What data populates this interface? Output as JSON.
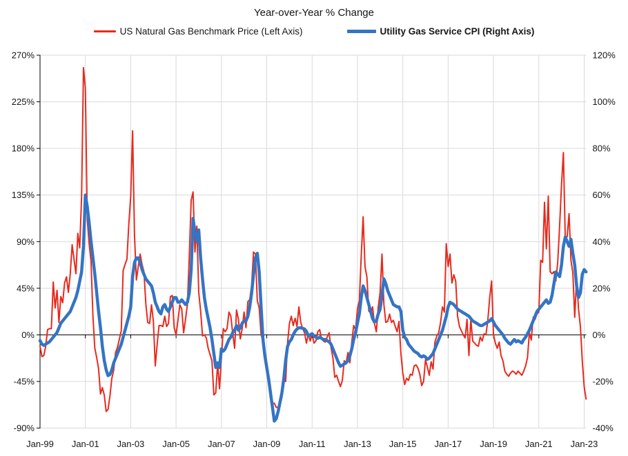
{
  "title": "Year-over-Year % Change",
  "legend": {
    "items": [
      {
        "label": "US Natural Gas Benchmark Price (Left Axis)",
        "color": "#e8291d",
        "style": "thin-line",
        "bold": false
      },
      {
        "label": "Utility Gas Service CPI (Right Axis)",
        "color": "#3474c4",
        "style": "thick-line",
        "bold": true
      }
    ]
  },
  "colors": {
    "background": "#ffffff",
    "gridline": "#d9d9d9",
    "axis": "#000000",
    "text": "#161616",
    "gas_price_line": "#e8291d",
    "cpi_line": "#3474c4"
  },
  "chart_data": {
    "type": "line",
    "title": "Year-over-Year % Change",
    "x_start": "Jan-1999",
    "x_interval": "monthly",
    "x_tick_labels": [
      "Jan-99",
      "Jan-01",
      "Jan-03",
      "Jan-05",
      "Jan-07",
      "Jan-09",
      "Jan-11",
      "Jan-13",
      "Jan-15",
      "Jan-17",
      "Jan-19",
      "Jan-21",
      "Jan-23"
    ],
    "x_tick_spacing_months": 24,
    "grid": true,
    "legend_position": "top",
    "left_axis": {
      "min": -90,
      "max": 270,
      "tick_step": 45,
      "ticks": [
        "270%",
        "225%",
        "180%",
        "135%",
        "90%",
        "45%",
        "0%",
        "-45%",
        "-90%"
      ]
    },
    "right_axis": {
      "min": -40,
      "max": 120,
      "tick_step": 20,
      "ticks": [
        "120%",
        "100%",
        "80%",
        "60%",
        "40%",
        "20%",
        "0%",
        "-20%",
        "-40%"
      ]
    },
    "series": [
      {
        "name": "US Natural Gas Benchmark Price (Left Axis)",
        "axis": "left",
        "color": "#e8291d",
        "stroke_width": 2,
        "values": [
          -11,
          -21,
          -20,
          -11,
          5,
          6,
          6,
          51,
          26,
          43,
          12,
          37,
          31,
          50,
          56,
          41,
          59,
          87,
          73,
          59,
          98,
          84,
          133,
          258,
          238,
          111,
          88,
          71,
          18,
          -13,
          -22,
          -33,
          -57,
          -51,
          -58,
          -74,
          -72,
          -59,
          -42,
          -34,
          -17,
          -12,
          -4,
          4,
          62,
          68,
          73,
          107,
          134,
          197,
          96,
          53,
          66,
          78,
          68,
          61,
          30,
          12,
          11,
          29,
          13,
          -30,
          -9,
          9,
          9,
          8,
          18,
          8,
          11,
          37,
          38,
          7,
          0,
          14,
          29,
          25,
          2,
          15,
          29,
          76,
          130,
          138,
          80,
          105,
          41,
          23,
          -1,
          0,
          -3,
          -13,
          -19,
          -25,
          -58,
          -56,
          -28,
          -52,
          -22,
          6,
          3,
          6,
          22,
          18,
          1,
          -13,
          24,
          15,
          -4,
          6,
          22,
          7,
          32,
          34,
          48,
          80,
          78,
          33,
          26,
          0,
          -6,
          -18,
          -34,
          -47,
          -58,
          -66,
          -66,
          -70,
          -70,
          -62,
          -61,
          -41,
          -45,
          -8,
          11,
          18,
          9,
          16,
          8,
          27,
          12,
          6,
          2,
          -8,
          1,
          -6,
          2,
          -8,
          -6,
          3,
          5,
          -4,
          -6,
          -7,
          -2,
          2,
          -12,
          -22,
          -41,
          -39,
          -45,
          -50,
          -44,
          -25,
          -27,
          -17,
          -27,
          -7,
          9,
          5,
          25,
          33,
          76,
          114,
          66,
          56,
          23,
          21,
          27,
          11,
          3,
          27,
          41,
          78,
          29,
          12,
          13,
          20,
          12,
          14,
          8,
          3,
          13,
          -18,
          -37,
          -48,
          -42,
          -44,
          -38,
          -39,
          -30,
          -29,
          -32,
          -38,
          -49,
          -45,
          -24,
          -31,
          -39,
          -26,
          -33,
          -7,
          -1,
          2,
          12,
          27,
          22,
          88,
          66,
          78,
          50,
          58,
          52,
          18,
          8,
          4,
          0,
          -3,
          15,
          -20,
          15,
          -6,
          -8,
          -10,
          -11,
          -2,
          -6,
          1,
          0,
          14,
          36,
          52,
          0,
          -8,
          -13,
          -7,
          -20,
          -25,
          -35,
          -38,
          -40,
          -37,
          -35,
          -36,
          -38,
          -35,
          -37,
          -39,
          -35,
          -30,
          -22,
          2,
          -5,
          17,
          15,
          20,
          22,
          72,
          70,
          128,
          83,
          134,
          61,
          59,
          61,
          52,
          70,
          105,
          145,
          176,
          92,
          95,
          117,
          72,
          60,
          17,
          55,
          25,
          8,
          -25,
          -50,
          -62
        ]
      },
      {
        "name": "Utility Gas Service CPI (Right Axis)",
        "axis": "right",
        "color": "#3474c4",
        "stroke_width": 4.5,
        "values": [
          -2.5,
          -4,
          -4.5,
          -4,
          -3.5,
          -3,
          -2,
          -1,
          0,
          1,
          3,
          5,
          6,
          7,
          8,
          9,
          10,
          12,
          14,
          16,
          19,
          23,
          27,
          38,
          60,
          55,
          48,
          40,
          33,
          26,
          18,
          10,
          3,
          -5,
          -11,
          -15,
          -17.5,
          -17,
          -15,
          -12,
          -10,
          -8,
          -6,
          -4,
          -1,
          2,
          5,
          8,
          12,
          25,
          31,
          33,
          33,
          31,
          28,
          26,
          24,
          23,
          22,
          21,
          18,
          14,
          12,
          10,
          9,
          12,
          13,
          11,
          10,
          12,
          14,
          16,
          16,
          14,
          14,
          15,
          14,
          13,
          14,
          18,
          28,
          50,
          44,
          40,
          45,
          33,
          24,
          16,
          11,
          7,
          3,
          -2,
          -8,
          -14,
          -12,
          -14,
          -6,
          -7,
          -6,
          -4,
          -2,
          -1,
          1,
          2,
          4,
          2,
          3,
          5,
          6,
          6,
          8,
          12,
          18,
          26,
          33,
          35,
          27,
          12,
          -2,
          -9,
          -14,
          -19,
          -25,
          -31,
          -37,
          -36,
          -33,
          -29,
          -25,
          -19,
          -11,
          -5,
          -3,
          -2,
          0,
          1.5,
          2.5,
          3,
          3,
          2.8,
          2.5,
          1.5,
          -0.5,
          0,
          0.5,
          -0.5,
          -1,
          -1.5,
          -1,
          -1.5,
          -2,
          -2,
          -2.5,
          -3,
          -4,
          -6,
          -8,
          -10,
          -12,
          -13.5,
          -13,
          -12.5,
          -12,
          -11,
          -9,
          -6,
          -2,
          1,
          5,
          9,
          16,
          21,
          19,
          16,
          13,
          10,
          7,
          5.5,
          6,
          9,
          11,
          17,
          24,
          22,
          19,
          17,
          15,
          13,
          12.5,
          12,
          12,
          10,
          2,
          -1,
          -2,
          -4,
          -5,
          -6,
          -7,
          -7.5,
          -8,
          -9,
          -9.5,
          -9,
          -9.5,
          -10.5,
          -10,
          -9,
          -8,
          -6,
          -4,
          -2,
          0,
          2,
          5,
          8,
          12,
          14,
          13.5,
          13,
          12,
          11,
          10.5,
          10,
          9.5,
          9,
          8.5,
          8,
          7,
          6,
          5.5,
          5,
          4.5,
          4,
          4,
          4.5,
          5,
          5.5,
          6,
          7,
          5.5,
          4,
          3,
          2,
          1,
          0,
          -1.5,
          -2.5,
          -3.5,
          -4,
          -3,
          -2,
          -3,
          -2.5,
          -3,
          -3.5,
          -2,
          -1,
          0.5,
          2,
          4,
          6,
          8,
          10,
          11,
          12,
          13,
          14,
          15,
          13.5,
          14,
          17,
          22,
          27,
          26,
          25,
          30,
          38,
          42,
          40,
          38,
          41,
          35,
          30,
          21,
          16,
          18,
          26,
          28,
          27
        ]
      }
    ]
  }
}
